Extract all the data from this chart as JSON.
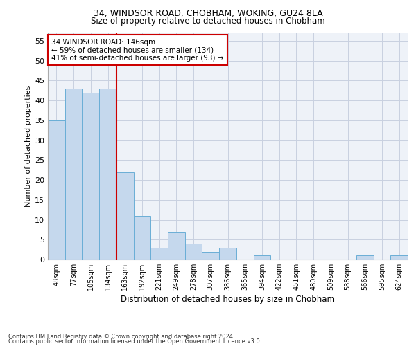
{
  "title1": "34, WINDSOR ROAD, CHOBHAM, WOKING, GU24 8LA",
  "title2": "Size of property relative to detached houses in Chobham",
  "xlabel": "Distribution of detached houses by size in Chobham",
  "ylabel": "Number of detached properties",
  "categories": [
    "48sqm",
    "77sqm",
    "105sqm",
    "134sqm",
    "163sqm",
    "192sqm",
    "221sqm",
    "249sqm",
    "278sqm",
    "307sqm",
    "336sqm",
    "365sqm",
    "394sqm",
    "422sqm",
    "451sqm",
    "480sqm",
    "509sqm",
    "538sqm",
    "566sqm",
    "595sqm",
    "624sqm"
  ],
  "values": [
    35,
    43,
    42,
    43,
    22,
    11,
    3,
    7,
    4,
    2,
    3,
    0,
    1,
    0,
    0,
    0,
    0,
    0,
    1,
    0,
    1
  ],
  "bar_color": "#c5d8ed",
  "bar_edge_color": "#6aaed6",
  "highlight_index": 3,
  "annotation_line1": "34 WINDSOR ROAD: 146sqm",
  "annotation_line2": "← 59% of detached houses are smaller (134)",
  "annotation_line3": "41% of semi-detached houses are larger (93) →",
  "annotation_box_color": "#ffffff",
  "annotation_box_edge": "#cc0000",
  "annotation_text_color": "#000000",
  "vline_color": "#cc0000",
  "ylim": [
    0,
    57
  ],
  "yticks": [
    0,
    5,
    10,
    15,
    20,
    25,
    30,
    35,
    40,
    45,
    50,
    55
  ],
  "footer1": "Contains HM Land Registry data © Crown copyright and database right 2024.",
  "footer2": "Contains public sector information licensed under the Open Government Licence v3.0.",
  "bg_color": "#eef2f8",
  "grid_color": "#c8d0e0"
}
